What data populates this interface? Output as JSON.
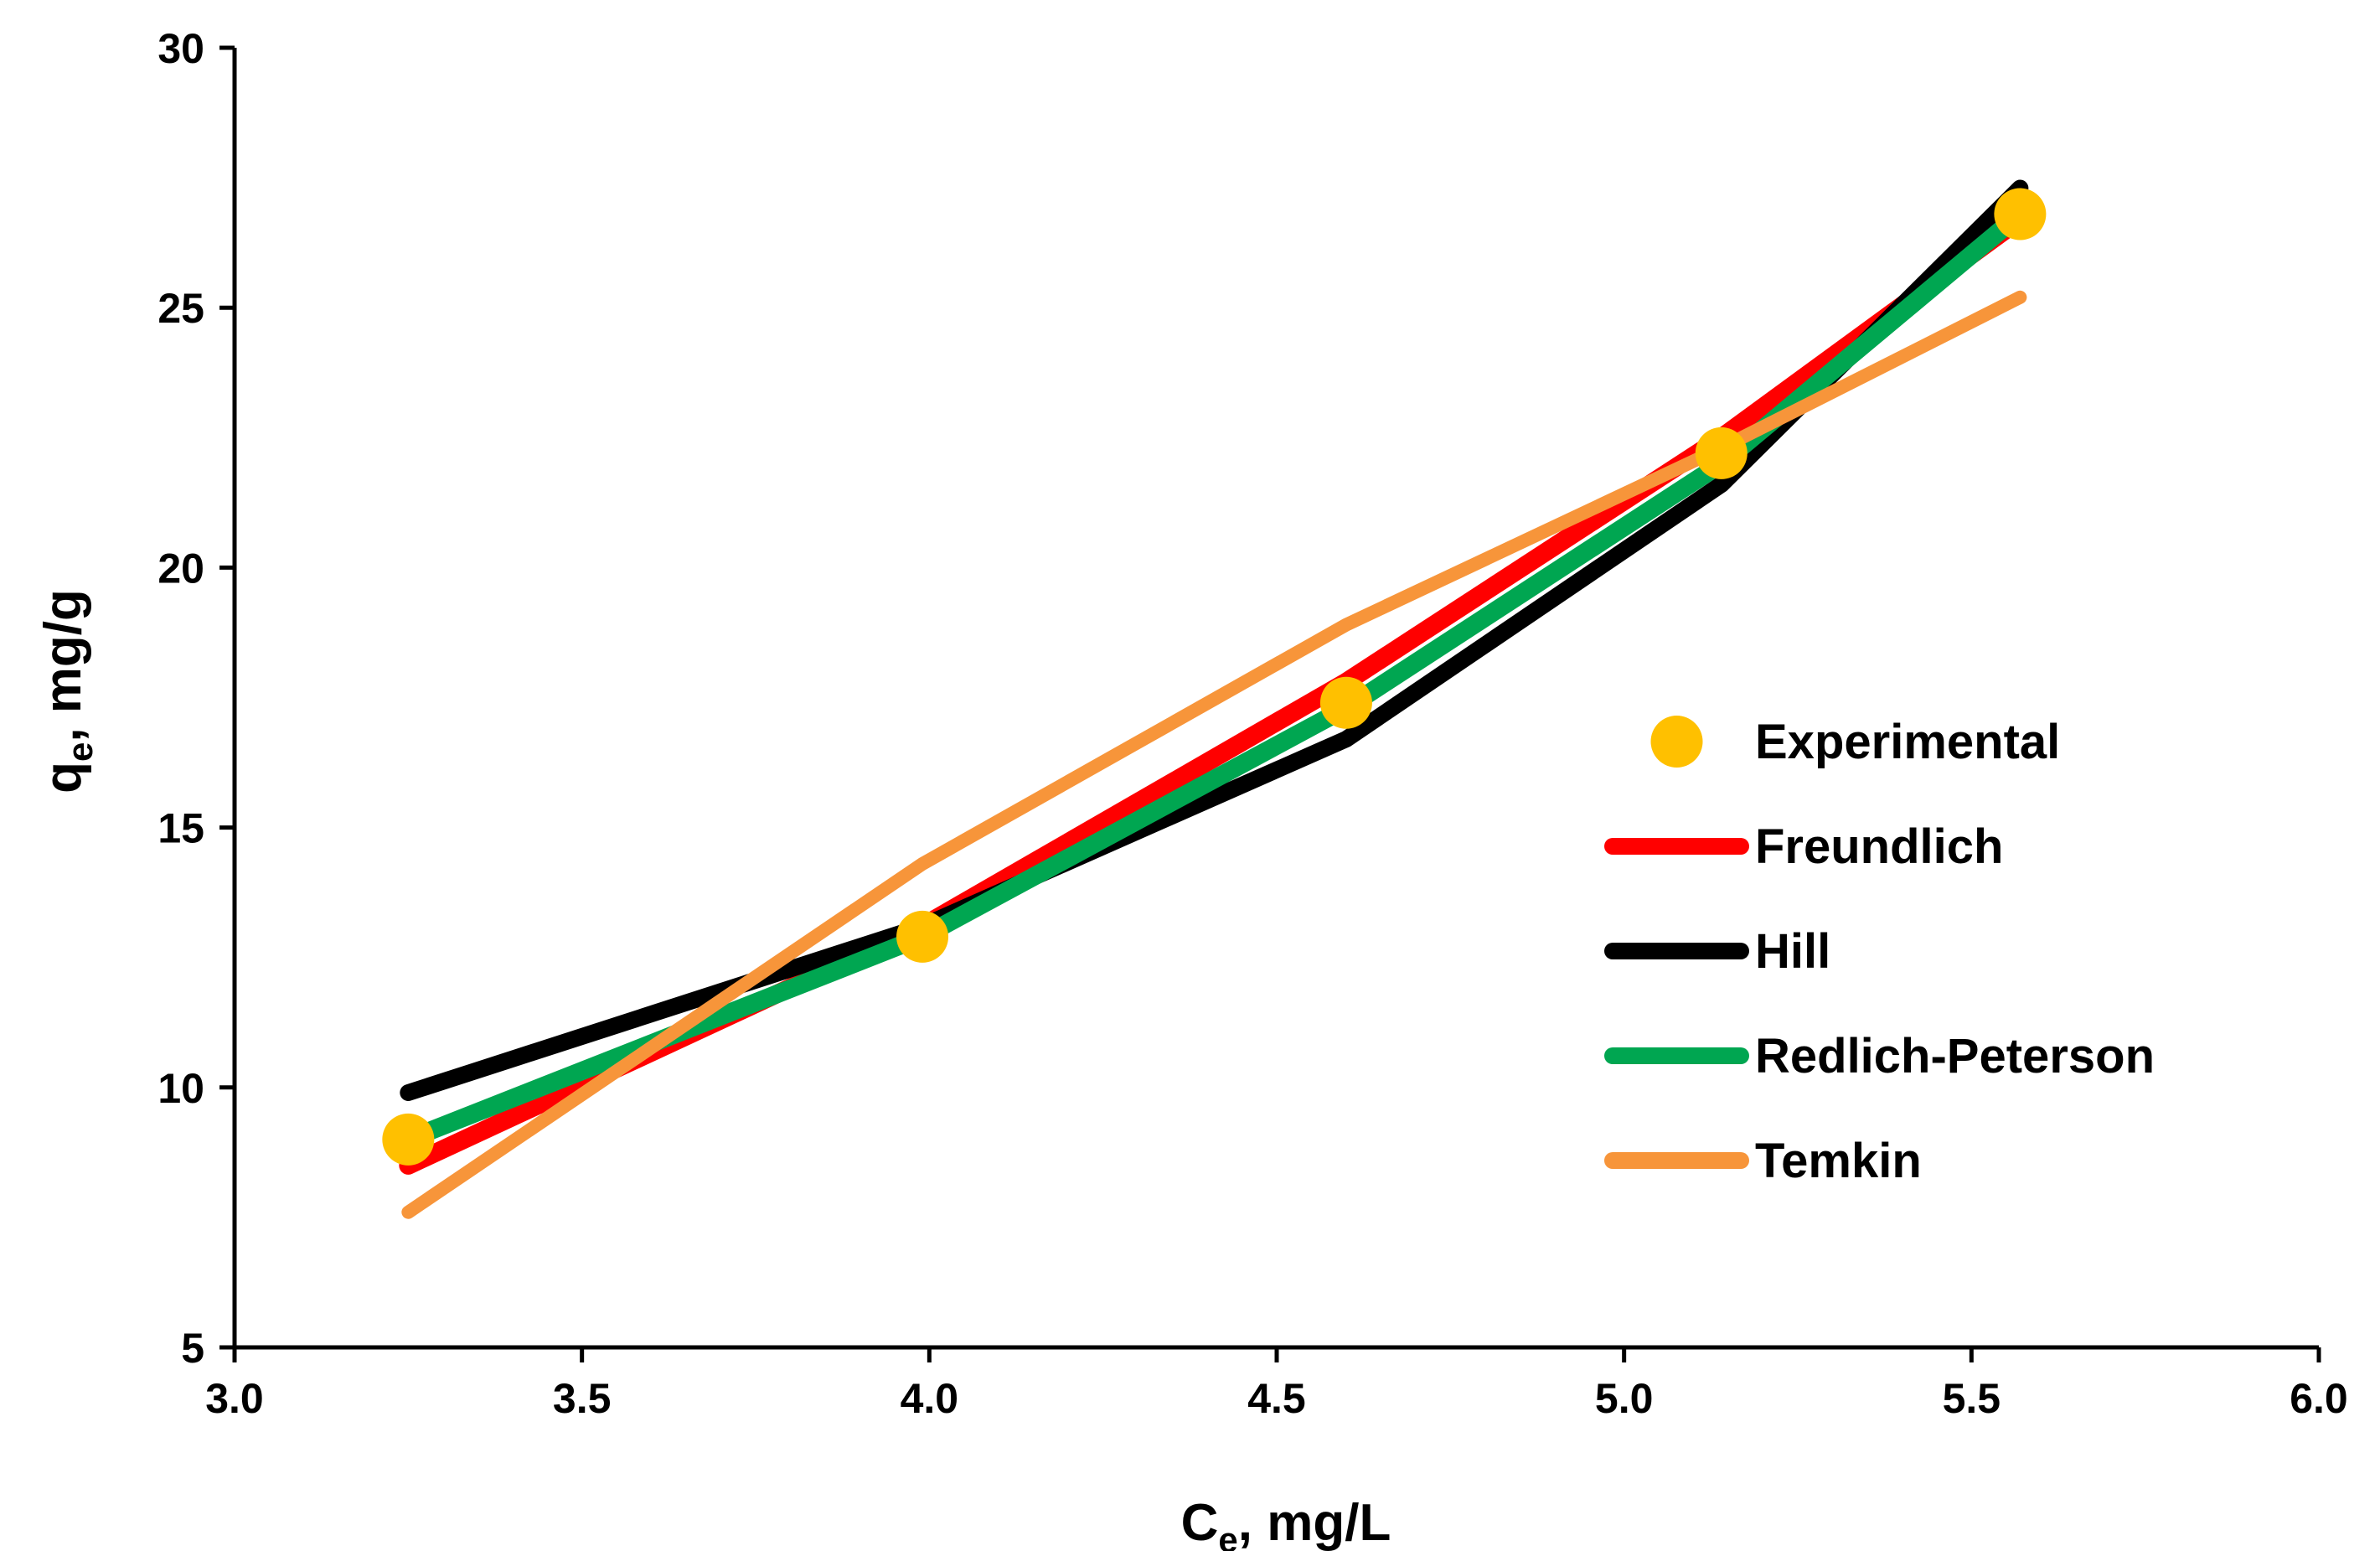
{
  "chart_data": {
    "type": "line",
    "xlabel_main": "C",
    "xlabel_sub": "e",
    "xlabel_rest": ", mg/L",
    "ylabel_main": "q",
    "ylabel_sub": "e",
    "ylabel_rest": ", mg/g",
    "xlim": [
      3.0,
      6.0
    ],
    "ylim": [
      5,
      30
    ],
    "x_ticks": [
      3.0,
      3.5,
      4.0,
      4.5,
      5.0,
      5.5,
      6.0
    ],
    "x_tick_labels": [
      "3.0",
      "3.5",
      "4.0",
      "4.5",
      "5.0",
      "5.5",
      "6.0"
    ],
    "y_ticks": [
      5,
      10,
      15,
      20,
      25,
      30
    ],
    "y_tick_labels": [
      "5",
      "10",
      "15",
      "20",
      "25",
      "30"
    ],
    "grid": false,
    "legend_position": "right",
    "x": [
      3.25,
      3.99,
      4.6,
      5.14,
      5.57
    ],
    "series": [
      {
        "name": "Freundlich",
        "color": "#ff0000",
        "kind": "line",
        "values": [
          8.5,
          13.1,
          17.8,
          22.5,
          26.7
        ]
      },
      {
        "name": "Hill",
        "color": "#000000",
        "kind": "line",
        "values": [
          9.9,
          13.1,
          16.7,
          21.6,
          27.3
        ]
      },
      {
        "name": "Redlich-Peterson",
        "color": "#00a651",
        "kind": "line",
        "values": [
          9.0,
          12.9,
          17.3,
          22.0,
          26.8
        ]
      },
      {
        "name": "Temkin",
        "color": "#f7953a",
        "kind": "line",
        "values": [
          7.6,
          14.3,
          18.9,
          22.3,
          25.2
        ]
      },
      {
        "name": "Experimental",
        "color": "#ffc000",
        "kind": "marker",
        "values": [
          9.0,
          12.9,
          17.4,
          22.2,
          26.8
        ]
      }
    ],
    "legend_order": [
      "Experimental",
      "Freundlich",
      "Hill",
      "Redlich-Peterson",
      "Temkin"
    ]
  }
}
